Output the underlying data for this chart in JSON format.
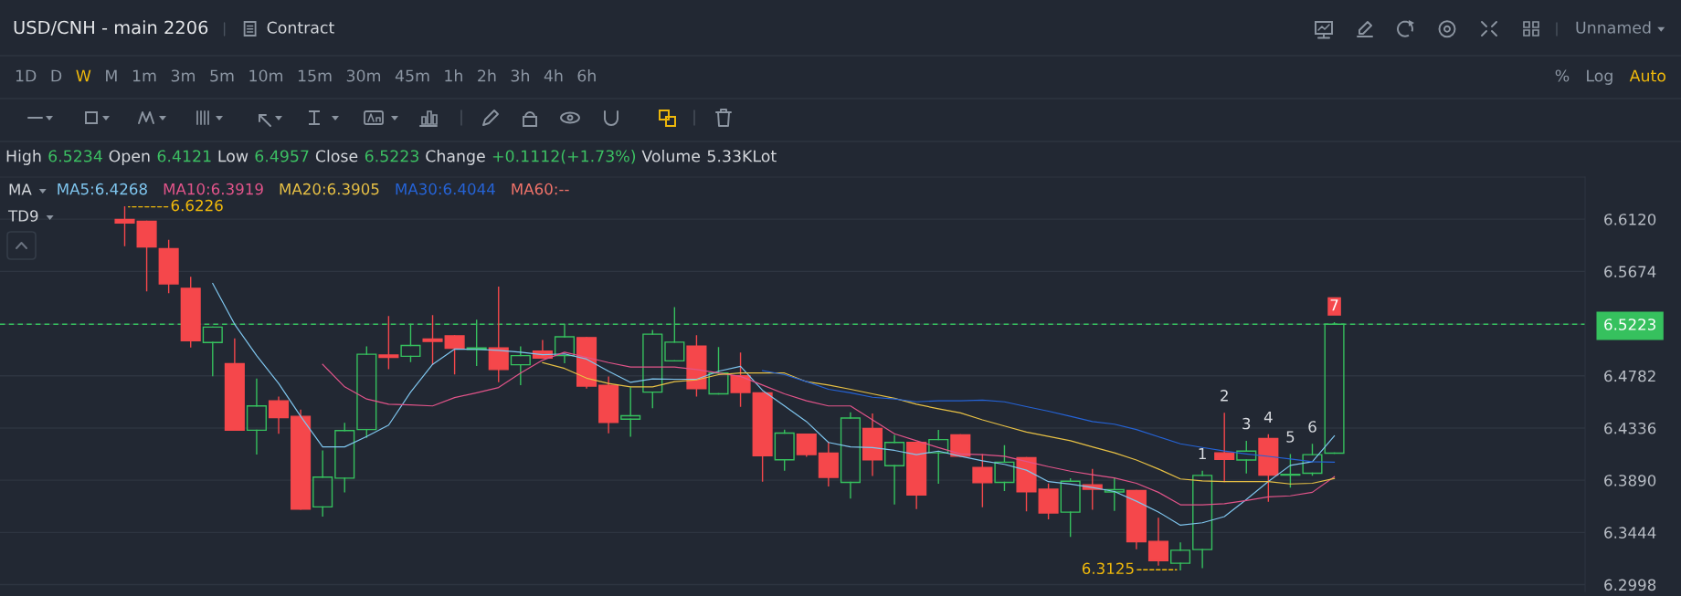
{
  "chart_data": {
    "type": "candlestick",
    "title": "USD/CNH - main 2206",
    "categories": [
      null,
      null,
      null,
      null,
      null,
      null,
      null,
      null,
      null,
      null,
      null,
      null,
      null,
      null,
      null,
      null,
      null,
      null,
      null,
      null,
      null,
      null,
      null,
      null,
      null,
      null,
      null,
      null,
      null,
      null,
      null,
      null,
      null,
      null,
      null,
      null,
      null,
      null,
      null,
      null,
      null,
      null,
      null,
      null,
      null,
      null,
      null,
      null,
      null,
      null,
      null,
      null,
      null,
      null,
      null,
      null
    ],
    "ohlc": [
      [
        6.6118,
        6.6226,
        6.5895,
        6.6088
      ],
      [
        6.6102,
        6.6102,
        6.5509,
        6.5883
      ],
      [
        6.5868,
        6.5939,
        6.5494,
        6.5568
      ],
      [
        6.553,
        6.5622,
        6.5029,
        6.5082
      ],
      [
        6.5067,
        6.5198,
        6.4783,
        6.5198
      ],
      [
        6.4886,
        6.5097,
        6.4317,
        6.4317
      ],
      [
        6.4317,
        6.4753,
        6.4115,
        6.4525
      ],
      [
        6.4569,
        6.4599,
        6.4293,
        6.4424
      ],
      [
        6.4436,
        6.4489,
        6.3644,
        6.3644
      ],
      [
        6.3662,
        6.4139,
        6.3585,
        6.3917
      ],
      [
        6.3908,
        6.4376,
        6.3792,
        6.4314
      ],
      [
        6.4323,
        6.5029,
        6.4258,
        6.4966
      ],
      [
        6.496,
        6.5287,
        6.4845,
        6.494
      ],
      [
        6.4949,
        6.5221,
        6.4904,
        6.5041
      ],
      [
        6.5097,
        6.5296,
        6.488,
        6.5076
      ],
      [
        6.5124,
        6.5124,
        6.48,
        6.5017
      ],
      [
        6.5008,
        6.5257,
        6.4871,
        6.502
      ],
      [
        6.502,
        6.5539,
        6.4732,
        6.4836
      ],
      [
        6.4877,
        6.5029,
        6.4708,
        6.4955
      ],
      [
        6.4993,
        6.5082,
        6.4934,
        6.4934
      ],
      [
        6.4955,
        6.5221,
        6.4895,
        6.5115
      ],
      [
        6.5109,
        6.5109,
        6.4679,
        6.4694
      ],
      [
        6.47,
        6.4771,
        6.4296,
        6.4385
      ],
      [
        6.4412,
        6.4679,
        6.4267,
        6.4441
      ],
      [
        6.4643,
        6.5168,
        6.451,
        6.5138
      ],
      [
        6.491,
        6.5364,
        6.491,
        6.507
      ],
      [
        6.5035,
        6.5124,
        6.4611,
        6.4673
      ],
      [
        6.4628,
        6.5023,
        6.4628,
        6.4806
      ],
      [
        6.4783,
        6.4975,
        6.4522,
        6.464
      ],
      [
        6.4637,
        6.4637,
        6.3884,
        6.41
      ],
      [
        6.4065,
        6.4317,
        6.3976,
        6.4293
      ],
      [
        6.4284,
        6.4284,
        6.4095,
        6.4109
      ],
      [
        6.4121,
        6.4213,
        6.3842,
        6.3914
      ],
      [
        6.3872,
        6.4465,
        6.3739,
        6.4421
      ],
      [
        6.4332,
        6.4456,
        6.3931,
        6.4065
      ],
      [
        6.4014,
        6.4272,
        6.3688,
        6.4213
      ],
      [
        6.4213,
        6.4213,
        6.365,
        6.3765
      ],
      [
        6.4124,
        6.4315,
        6.3866,
        6.4237
      ],
      [
        6.4278,
        6.4278,
        6.4095,
        6.4095
      ],
      [
        6.3999,
        6.4109,
        6.3665,
        6.3869
      ],
      [
        6.3872,
        6.4184,
        6.3804,
        6.4044
      ],
      [
        6.4083,
        6.4083,
        6.3629,
        6.3792
      ],
      [
        6.3813,
        6.3857,
        6.3561,
        6.3611
      ],
      [
        6.3617,
        6.3902,
        6.3412,
        6.3881
      ],
      [
        6.3851,
        6.3982,
        6.3644,
        6.3813
      ],
      [
        6.379,
        6.391,
        6.3634,
        6.3809
      ],
      [
        6.3803,
        6.3803,
        6.3307,
        6.3365
      ],
      [
        6.3368,
        6.3564,
        6.3166,
        6.3203
      ],
      [
        6.3181,
        6.3353,
        6.3125,
        6.3292
      ],
      [
        6.3298,
        6.3965,
        6.3145,
        6.3931
      ],
      [
        6.4124,
        6.4461,
        6.3879,
        6.4069
      ],
      [
        6.4063,
        6.4222,
        6.3953,
        6.4139
      ],
      [
        6.4247,
        6.4277,
        6.3711,
        6.3934
      ],
      [
        6.3934,
        6.4109,
        6.3833,
        6.394
      ],
      [
        6.395,
        6.4195,
        6.3934,
        6.4109
      ],
      [
        6.4121,
        6.5234,
        6.4121,
        6.5223
      ]
    ],
    "colors": [
      "#f5474b",
      "#f5474b",
      "#f5474b",
      "#f5474b",
      "#36c15e",
      "#f5474b",
      "#36c15e",
      "#f5474b",
      "#f5474b",
      "#36c15e",
      "#36c15e",
      "#36c15e",
      "#f5474b",
      "#36c15e",
      "#f5474b",
      "#f5474b",
      "#36c15e",
      "#f5474b",
      "#36c15e",
      "#f5474b",
      "#36c15e",
      "#f5474b",
      "#f5474b",
      "#36c15e",
      "#36c15e",
      "#36c15e",
      "#f5474b",
      "#36c15e",
      "#f5474b",
      "#f5474b",
      "#36c15e",
      "#f5474b",
      "#f5474b",
      "#36c15e",
      "#f5474b",
      "#36c15e",
      "#f5474b",
      "#36c15e",
      "#f5474b",
      "#f5474b",
      "#36c15e",
      "#f5474b",
      "#f5474b",
      "#36c15e",
      "#f5474b",
      "#36c15e",
      "#f5474b",
      "#f5474b",
      "#36c15e",
      "#36c15e",
      "#f5474b",
      "#36c15e",
      "#f5474b",
      "#36c15e",
      "#36c15e",
      "#36c15e"
    ],
    "series": [
      {
        "name": "MA5:6.4268",
        "type": "line",
        "color": "#7fc6ef",
        "values": [
          null,
          null,
          null,
          null,
          6.5571,
          6.5222,
          6.4955,
          6.4717,
          6.4436,
          6.4175,
          6.4175,
          6.4264,
          6.4361,
          6.4643,
          6.488,
          6.5011,
          6.5008,
          6.4999,
          6.4984,
          6.4963,
          6.4969,
          6.4925,
          6.4821,
          6.4726,
          6.4756,
          6.4753,
          6.4753,
          6.4821,
          6.4863,
          6.4658,
          6.4525,
          6.4391,
          6.4213,
          6.4175,
          6.4169,
          6.4145,
          6.4109,
          6.4139,
          6.4095,
          6.4056,
          6.4026,
          6.3976,
          6.3878,
          6.3857,
          6.3828,
          6.3794,
          6.3711,
          6.3619,
          6.3506,
          6.3527,
          6.3579,
          6.3726,
          6.3879,
          6.4017,
          6.4048,
          6.4268
        ]
      },
      {
        "name": "MA10:6.3919",
        "type": "line",
        "color": "#e2548a",
        "values": [
          null,
          null,
          null,
          null,
          null,
          null,
          null,
          null,
          null,
          6.488,
          6.4688,
          6.4584,
          6.4539,
          6.4534,
          6.4525,
          6.4596,
          6.4637,
          6.4682,
          6.4806,
          6.4916,
          6.4984,
          6.494,
          6.4895,
          6.4857,
          6.4857,
          6.4857,
          6.4836,
          6.4806,
          6.4777,
          6.4703,
          6.4628,
          6.4569,
          6.4525,
          6.4525,
          6.4406,
          6.4287,
          6.4228,
          6.4169,
          6.4115,
          6.4109,
          6.4095,
          6.405,
          6.4006,
          6.3967,
          6.3937,
          6.391,
          6.3864,
          6.3787,
          6.368,
          6.368,
          6.369,
          6.3717,
          6.3748,
          6.3757,
          6.3787,
          6.3919
        ]
      },
      {
        "name": "MA20:6.3905",
        "type": "line",
        "color": "#e8c145",
        "values": [
          null,
          null,
          null,
          null,
          null,
          null,
          null,
          null,
          null,
          null,
          null,
          null,
          null,
          null,
          null,
          null,
          null,
          null,
          null,
          6.4895,
          6.4845,
          6.4762,
          6.4717,
          6.4688,
          6.4688,
          6.4732,
          6.4747,
          6.4792,
          6.4806,
          6.4806,
          6.4806,
          6.4732,
          6.4703,
          6.4667,
          6.4628,
          6.459,
          6.4539,
          6.4501,
          6.4465,
          6.4406,
          6.4353,
          6.4302,
          6.4264,
          6.4228,
          6.4175,
          6.4124,
          6.4063,
          6.3986,
          6.3901,
          6.3885,
          6.3879,
          6.3879,
          6.3879,
          6.3858,
          6.3864,
          6.3905
        ]
      },
      {
        "name": "MA30:6.4044",
        "type": "line",
        "color": "#2563d6",
        "values": [
          null,
          null,
          null,
          null,
          null,
          null,
          null,
          null,
          null,
          null,
          null,
          null,
          null,
          null,
          null,
          null,
          null,
          null,
          null,
          null,
          null,
          null,
          null,
          null,
          null,
          null,
          null,
          null,
          null,
          6.4827,
          6.4792,
          6.4732,
          6.4667,
          6.4637,
          6.4599,
          6.4584,
          6.456,
          6.4569,
          6.4569,
          6.4575,
          6.456,
          6.4519,
          6.448,
          6.4436,
          6.4391,
          6.4369,
          6.4323,
          6.4262,
          6.4201,
          6.417,
          6.414,
          6.4115,
          6.4094,
          6.4072,
          6.4048,
          6.4044
        ]
      },
      {
        "name": "MA60:--",
        "type": "line",
        "color": "#f0736a",
        "values": [
          null,
          null,
          null,
          null,
          null,
          null,
          null,
          null,
          null,
          null,
          null,
          null,
          null,
          null,
          null,
          null,
          null,
          null,
          null,
          null,
          null,
          null,
          null,
          null,
          null,
          null,
          null,
          null,
          null,
          null,
          null,
          null,
          null,
          null,
          null,
          null,
          null,
          null,
          null,
          null,
          null,
          null,
          null,
          null,
          null,
          null,
          null,
          null,
          null,
          null,
          null,
          null,
          null,
          null,
          null,
          null
        ]
      }
    ],
    "legend_title": "MA",
    "legend": "top left",
    "value_labels": [
      null,
      null,
      null,
      null,
      null,
      null,
      null,
      null,
      null,
      null,
      null,
      null,
      null,
      null,
      null,
      null,
      null,
      null,
      null,
      null,
      null,
      null,
      null,
      null,
      null,
      null,
      null,
      null,
      null,
      null,
      null,
      null,
      null,
      null,
      null,
      null,
      null,
      null,
      null,
      null,
      null,
      null,
      null,
      null,
      null,
      null,
      null,
      null,
      null,
      "1",
      "2",
      "3",
      "4",
      "5",
      "6",
      "7"
    ],
    "ylim": [
      6.294,
      6.648
    ],
    "yticks": [
      6.2998,
      6.3444,
      {
        "value": 6.389,
        "label": "6.3890"
      },
      6.4336,
      6.4782,
      6.5223,
      6.5674,
      {
        "value": 6.612,
        "label": "6.6120"
      }
    ],
    "grid": "y",
    "tick_labels": "y",
    "ref_lines": [
      {
        "axis": "y",
        "value": 6.5223,
        "color": "#36c15e",
        "line_style": "dashed"
      }
    ],
    "annotations": [
      "6.6226",
      "6.3125",
      "Contract",
      "Unnamed",
      "1D D W M 1m 3m 5m 10m 15m 30m 45m 1h 2h 3h 4h 6h",
      "% Log Auto",
      "High 6.5234 Open 6.4121 Low 6.4957 Close 6.5223 Change +0.1112(+1.73%) Volume 5.33KLot",
      "TD9"
    ]
  }
}
